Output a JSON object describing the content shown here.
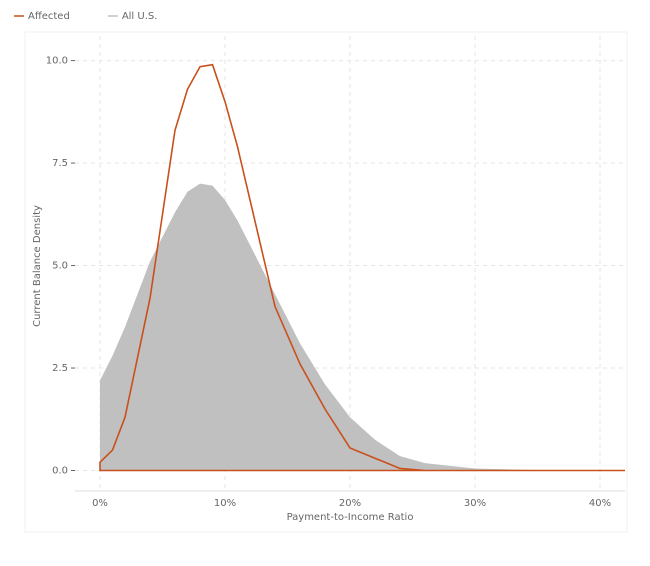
{
  "chart_data": {
    "type": "density",
    "xlabel": "Payment-to-Income Ratio",
    "ylabel": "Current Balance Density",
    "x": [
      0,
      0,
      1,
      2,
      4,
      6,
      7,
      8,
      9,
      10,
      11,
      12,
      14,
      16,
      18,
      20,
      22,
      24,
      26,
      30,
      35,
      42
    ],
    "series": [
      {
        "name": "Affected",
        "type": "line",
        "color": "#c9501c",
        "values": [
          0,
          0.2,
          0.5,
          1.3,
          4.2,
          8.3,
          9.3,
          9.85,
          9.9,
          9.0,
          7.9,
          6.6,
          4.0,
          2.6,
          1.5,
          0.55,
          0.3,
          0.05,
          0,
          0,
          0,
          0
        ]
      },
      {
        "name": "All U.S.",
        "type": "area",
        "color": "#c0c0c0",
        "values": [
          0,
          2.2,
          2.8,
          3.5,
          5.1,
          6.3,
          6.8,
          7.0,
          6.95,
          6.6,
          6.1,
          5.5,
          4.3,
          3.1,
          2.1,
          1.3,
          0.75,
          0.35,
          0.18,
          0.05,
          0.01,
          0
        ]
      }
    ],
    "xlim": [
      -2,
      42
    ],
    "ylim": [
      -0.5,
      10.6
    ],
    "xticks": [
      {
        "value": 0,
        "label": "0%"
      },
      {
        "value": 10,
        "label": "10%"
      },
      {
        "value": 20,
        "label": "20%"
      },
      {
        "value": 30,
        "label": "30%"
      },
      {
        "value": 40,
        "label": "40%"
      }
    ],
    "yticks": [
      {
        "value": 0,
        "label": "0.0"
      },
      {
        "value": 2.5,
        "label": "2.5"
      },
      {
        "value": 5,
        "label": "5.0"
      },
      {
        "value": 7.5,
        "label": "7.5"
      },
      {
        "value": 10,
        "label": "10.0"
      }
    ],
    "grid": true,
    "legend": "top-left"
  }
}
